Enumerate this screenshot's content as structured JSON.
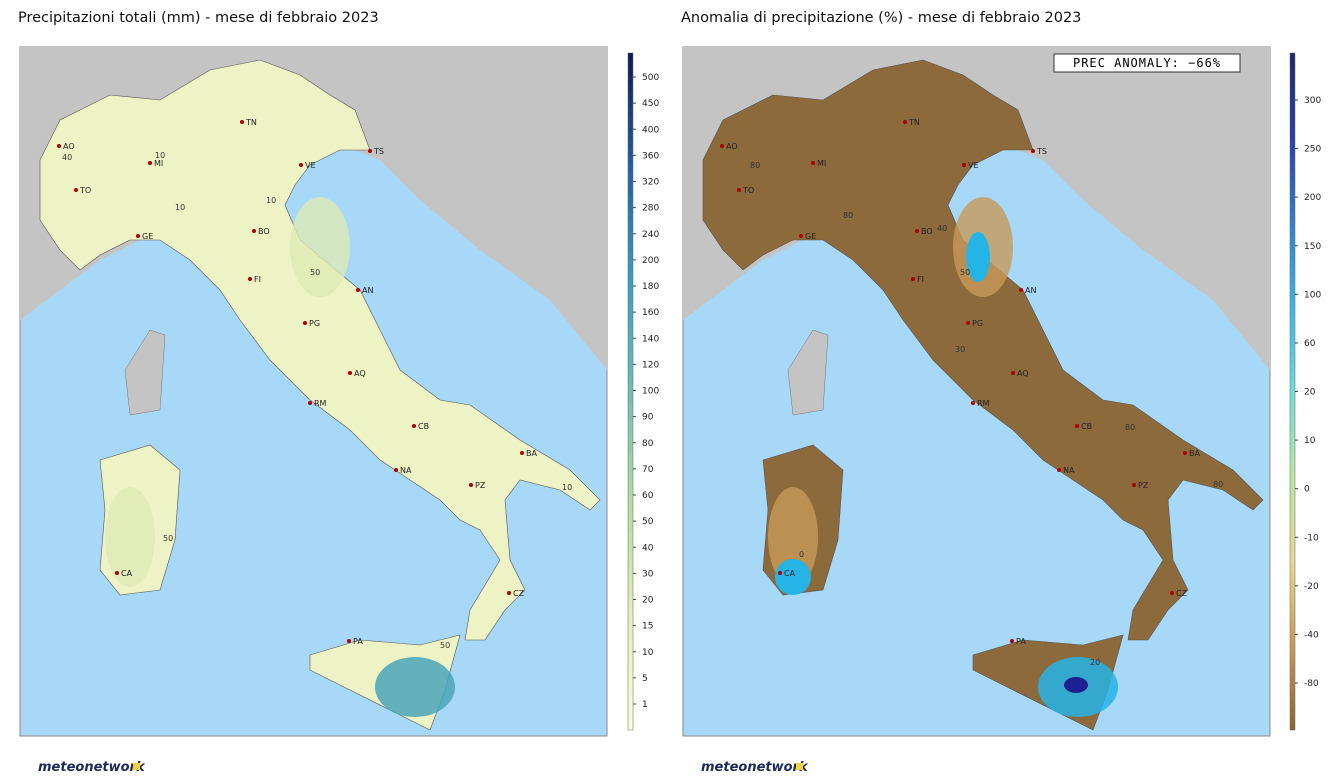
{
  "panels": [
    {
      "title": "Precipitazioni totali (mm) - mese di febbraio 2023",
      "colorbar": {
        "ticks": [
          500,
          450,
          400,
          360,
          320,
          280,
          240,
          200,
          180,
          160,
          140,
          120,
          100,
          90,
          80,
          70,
          60,
          50,
          40,
          30,
          20,
          15,
          10,
          5,
          1
        ],
        "colors": [
          "#0d1a5a",
          "#1f5fa8",
          "#3a9cc4",
          "#6cc0b4",
          "#b4dca0",
          "#e6f0b4",
          "#fcfce0"
        ]
      },
      "contour_labels": [
        "40",
        "10",
        "10",
        "10",
        "50",
        "50",
        "10",
        "50"
      ]
    },
    {
      "title": "Anomalia di precipitazione (%) - mese di febbraio 2023",
      "annotation": "PREC ANOMALY: −66%",
      "colorbar": {
        "ticks": [
          300,
          250,
          200,
          150,
          100,
          60,
          20,
          10,
          0,
          -10,
          -20,
          -40,
          -80
        ],
        "colors": [
          "#1a2a6e",
          "#2a3fa8",
          "#2e7fd0",
          "#38b6e8",
          "#6edcd8",
          "#b8e8a0",
          "#e8d890",
          "#c89a58",
          "#8a6434"
        ]
      },
      "contour_labels": [
        "80",
        "80",
        "40",
        "50",
        "80",
        "80",
        "0",
        "20",
        "30"
      ]
    }
  ],
  "cities": [
    "AO",
    "MI",
    "TO",
    "GE",
    "TN",
    "VE",
    "TS",
    "BO",
    "FI",
    "AN",
    "PG",
    "AQ",
    "RM",
    "CB",
    "NA",
    "BA",
    "PZ",
    "CA",
    "CZ",
    "PA"
  ],
  "logo": "meteonetwork"
}
